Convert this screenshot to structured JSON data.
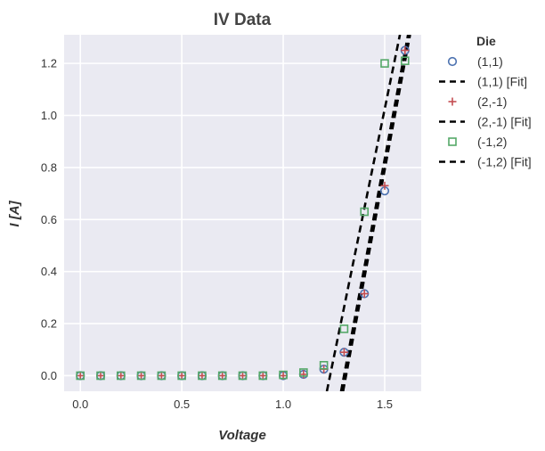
{
  "chart_data": {
    "type": "scatter",
    "title": "IV Data",
    "xlabel": "Voltage",
    "ylabel": "I [A]",
    "xlim": [
      -0.08,
      1.68
    ],
    "ylim": [
      -0.06,
      1.31
    ],
    "xticks": [
      0.0,
      0.5,
      1.0,
      1.5
    ],
    "xtick_labels": [
      "0.0",
      "0.5",
      "1.0",
      "1.5"
    ],
    "yticks": [
      0.0,
      0.2,
      0.4,
      0.6,
      0.8,
      1.0,
      1.2
    ],
    "ytick_labels": [
      "0.0",
      "0.2",
      "0.4",
      "0.6",
      "0.8",
      "1.0",
      "1.2"
    ],
    "grid": true,
    "legend_title": "Die",
    "legend_placement": "outside-right",
    "series": [
      {
        "name": "(1,1)",
        "kind": "scatter",
        "marker": "circle",
        "color": "#4c72b0",
        "x": [
          0.0,
          0.1,
          0.2,
          0.3,
          0.4,
          0.5,
          0.6,
          0.7,
          0.8,
          0.9,
          1.0,
          1.1,
          1.2,
          1.3,
          1.4,
          1.5,
          1.6
        ],
        "y": [
          0.0,
          0.0,
          0.0,
          0.0,
          0.0,
          0.0,
          0.0,
          0.0,
          0.0,
          0.0,
          0.0,
          0.005,
          0.025,
          0.09,
          0.315,
          0.71,
          1.25
        ]
      },
      {
        "name": "(1,1) [Fit]",
        "kind": "line",
        "dash": true,
        "color": "#000000",
        "x": [
          1.295,
          1.625
        ],
        "y": [
          -0.06,
          1.31
        ]
      },
      {
        "name": "(2,-1)",
        "kind": "scatter",
        "marker": "plus",
        "color": "#c44e52",
        "x": [
          0.0,
          0.1,
          0.2,
          0.3,
          0.4,
          0.5,
          0.6,
          0.7,
          0.8,
          0.9,
          1.0,
          1.1,
          1.2,
          1.3,
          1.4,
          1.5,
          1.6
        ],
        "y": [
          0.0,
          0.0,
          0.0,
          0.0,
          0.0,
          0.0,
          0.0,
          0.0,
          0.0,
          0.0,
          0.0,
          0.005,
          0.025,
          0.09,
          0.315,
          0.73,
          1.25
        ]
      },
      {
        "name": "(2,-1) [Fit]",
        "kind": "line",
        "dash": true,
        "color": "#000000",
        "x": [
          1.285,
          1.615
        ],
        "y": [
          -0.06,
          1.31
        ]
      },
      {
        "name": "(-1,2)",
        "kind": "scatter",
        "marker": "square",
        "color": "#55a868",
        "x": [
          0.0,
          0.1,
          0.2,
          0.3,
          0.4,
          0.5,
          0.6,
          0.7,
          0.8,
          0.9,
          1.0,
          1.1,
          1.2,
          1.3,
          1.4,
          1.5,
          1.6
        ],
        "y": [
          0.0,
          0.0,
          0.0,
          0.0,
          0.0,
          0.0,
          0.0,
          0.0,
          0.0,
          0.0,
          0.003,
          0.012,
          0.04,
          0.18,
          0.63,
          1.2,
          1.21
        ]
      },
      {
        "name": "(-1,2) [Fit]",
        "kind": "line",
        "dash": true,
        "color": "#000000",
        "x": [
          1.215,
          1.575
        ],
        "y": [
          -0.06,
          1.31
        ]
      }
    ]
  }
}
